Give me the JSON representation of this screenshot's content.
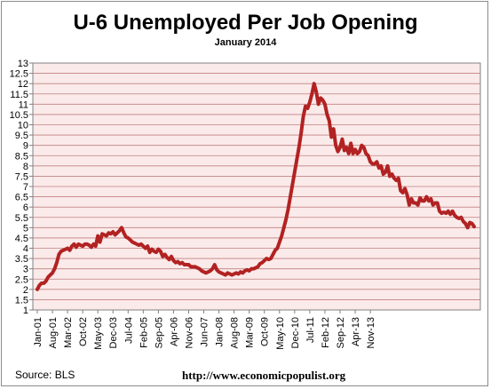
{
  "chart_data": {
    "type": "line",
    "title": "U-6 Unemployed Per Job Opening",
    "subtitle": "January 2014",
    "ylim": [
      1,
      13
    ],
    "yticks": [
      "1",
      "1.5",
      "2",
      "2.5",
      "3",
      "3.5",
      "4",
      "4.5",
      "5",
      "5.5",
      "6",
      "6.5",
      "7",
      "7.5",
      "8",
      "8.5",
      "9",
      "9.5",
      "10",
      "10.5",
      "11",
      "11.5",
      "12",
      "12.5",
      "13"
    ],
    "xticks": [
      "Jan-01",
      "Aug-01",
      "Mar-02",
      "Oct-02",
      "May-03",
      "Dec-03",
      "Jul-04",
      "Feb-05",
      "Sep-05",
      "Apr-06",
      "Nov-06",
      "Jun-07",
      "Jan-08",
      "Aug-08",
      "Mar-09",
      "Oct-09",
      "May-10",
      "Dec-10",
      "Jul-11",
      "Feb-12",
      "Sep-12",
      "Apr-13",
      "Nov-13"
    ],
    "x_period": "monthly, Jan-01 to Jan-14",
    "line_color": "#b22222",
    "plot_background": "#fbeaea",
    "grid_color": "#c08080",
    "grid": true,
    "series": [
      {
        "values": [
          2.0,
          2.2,
          2.3,
          2.3,
          2.4,
          2.6,
          2.7,
          2.8,
          3.0,
          3.3,
          3.7,
          3.85,
          3.9,
          3.95,
          4.0,
          3.9,
          4.1,
          4.2,
          4.05,
          4.2,
          4.15,
          4.1,
          4.2,
          4.2,
          4.15,
          4.05,
          4.2,
          4.1,
          4.6,
          4.3,
          4.7,
          4.65,
          4.6,
          4.75,
          4.7,
          4.8,
          4.65,
          4.75,
          4.85,
          5.0,
          4.75,
          4.55,
          4.5,
          4.4,
          4.3,
          4.25,
          4.2,
          4.15,
          4.2,
          4.1,
          4.0,
          4.1,
          3.8,
          3.95,
          3.85,
          3.8,
          3.95,
          3.85,
          3.6,
          3.7,
          3.55,
          3.45,
          3.6,
          3.4,
          3.3,
          3.35,
          3.25,
          3.3,
          3.2,
          3.2,
          3.2,
          3.1,
          3.1,
          3.1,
          3.05,
          3.0,
          2.9,
          2.85,
          2.8,
          2.85,
          2.9,
          3.0,
          3.2,
          2.95,
          2.85,
          2.8,
          2.75,
          2.7,
          2.8,
          2.75,
          2.7,
          2.75,
          2.8,
          2.75,
          2.85,
          2.8,
          2.9,
          2.95,
          2.9,
          3.0,
          3.0,
          3.05,
          3.1,
          3.25,
          3.3,
          3.4,
          3.5,
          3.45,
          3.5,
          3.7,
          3.9,
          4.0,
          4.3,
          4.6,
          5.0,
          5.4,
          5.9,
          6.5,
          7.1,
          7.7,
          8.3,
          8.9,
          9.6,
          10.4,
          10.9,
          10.8,
          11.1,
          11.5,
          12.0,
          11.6,
          11.0,
          11.3,
          11.2,
          11.0,
          10.5,
          10.2,
          9.4,
          9.8,
          9.0,
          8.7,
          8.9,
          9.3,
          8.75,
          8.9,
          8.6,
          9.1,
          8.6,
          8.8,
          8.6,
          8.7,
          9.0,
          8.9,
          8.6,
          8.5,
          8.2,
          8.1,
          8.1,
          8.2,
          7.9,
          8.0,
          7.6,
          7.7,
          8.0,
          7.5,
          7.6,
          7.4,
          7.3,
          7.4,
          6.8,
          6.7,
          6.9,
          6.6,
          6.1,
          6.4,
          6.2,
          6.2,
          6.1,
          6.45,
          6.3,
          6.3,
          6.5,
          6.3,
          6.4,
          6.1,
          6.2,
          6.2,
          5.8,
          5.7,
          5.75,
          5.7,
          5.8,
          5.65,
          5.8,
          5.6,
          5.5,
          5.45,
          5.5,
          5.3,
          5.2,
          5.0,
          5.25,
          5.2,
          5.05
        ]
      }
    ]
  },
  "footer": {
    "source": "Source:  BLS",
    "url": "http://www.economicpopulist.org"
  }
}
